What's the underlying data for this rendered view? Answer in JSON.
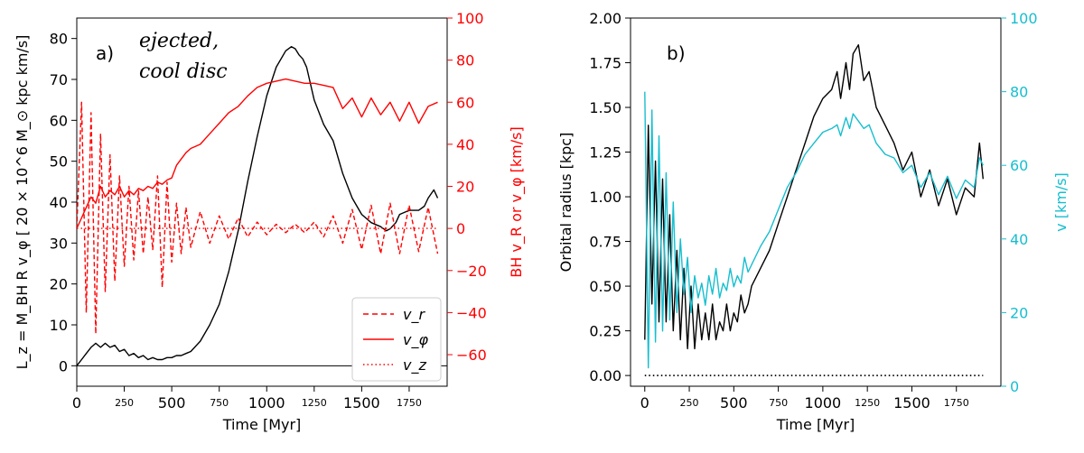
{
  "chart_data": [
    {
      "type": "line",
      "panel_label": "a)",
      "annotation": [
        "ejected,",
        "cool disc"
      ],
      "xlabel": "Time [Myr]",
      "ylabel_left": "L_z = M_BH R v_φ [ 20 × 10^6 M_⊙ kpc km/s]",
      "ylabel_right": "BH v_R or v_φ [km/s]",
      "xlim": [
        0,
        1950
      ],
      "ylim_left": [
        -5,
        85
      ],
      "ylim_right": [
        -75,
        100
      ],
      "x_ticks_large": [
        "0",
        "500",
        "1000",
        "1500"
      ],
      "x_ticks_small": [
        "250",
        "750",
        "1250",
        "1750"
      ],
      "y_ticks_left": [
        "0",
        "10",
        "20",
        "30",
        "40",
        "50",
        "60",
        "70",
        "80"
      ],
      "y_ticks_right": [
        "−60",
        "−40",
        "−20",
        "0",
        "20",
        "40",
        "60",
        "80",
        "100"
      ],
      "colors": {
        "lz": "#000000",
        "velocity": "#ff0000"
      },
      "legend": {
        "placement": "bottom-right",
        "entries": [
          "v_r",
          "v_φ",
          "v_z"
        ]
      },
      "series": [
        {
          "name": "L_z",
          "axis": "left",
          "x": [
            0,
            25,
            50,
            75,
            100,
            125,
            150,
            175,
            200,
            225,
            250,
            275,
            300,
            325,
            350,
            375,
            400,
            425,
            450,
            475,
            500,
            525,
            550,
            575,
            600,
            650,
            700,
            750,
            800,
            850,
            900,
            950,
            1000,
            1050,
            1100,
            1130,
            1150,
            1170,
            1190,
            1210,
            1250,
            1300,
            1350,
            1400,
            1450,
            1500,
            1550,
            1600,
            1630,
            1650,
            1680,
            1700,
            1750,
            1800,
            1830,
            1850,
            1880,
            1900
          ],
          "y": [
            0,
            1.5,
            3,
            4.5,
            5.5,
            4.5,
            5.5,
            4.5,
            5,
            3.5,
            4,
            2.5,
            3,
            2,
            2.5,
            1.5,
            2,
            1.5,
            1.5,
            2,
            2,
            2.5,
            2.5,
            3,
            3.5,
            6,
            10,
            15,
            23,
            33,
            45,
            56,
            66,
            73,
            77,
            78,
            77.5,
            76,
            75,
            73,
            65,
            59,
            55,
            47,
            41,
            37,
            35,
            34,
            33,
            33.5,
            35,
            37,
            38,
            38,
            39,
            41,
            43,
            41
          ]
        },
        {
          "name": "v_phi",
          "axis": "right",
          "x": [
            0,
            25,
            50,
            75,
            100,
            125,
            150,
            175,
            200,
            225,
            250,
            275,
            300,
            325,
            350,
            375,
            400,
            425,
            450,
            475,
            500,
            525,
            550,
            575,
            600,
            650,
            700,
            750,
            800,
            850,
            900,
            950,
            1000,
            1050,
            1100,
            1150,
            1200,
            1250,
            1300,
            1350,
            1400,
            1450,
            1500,
            1550,
            1600,
            1650,
            1700,
            1750,
            1800,
            1850,
            1900
          ],
          "y": [
            0,
            5,
            10,
            15,
            12,
            20,
            15,
            18,
            16,
            20,
            15,
            18,
            16,
            19,
            18,
            20,
            19,
            22,
            21,
            23,
            24,
            30,
            33,
            36,
            38,
            40,
            45,
            50,
            55,
            58,
            63,
            67,
            69,
            70,
            71,
            70,
            69,
            69,
            68,
            67,
            57,
            62,
            53,
            62,
            54,
            60,
            51,
            60,
            50,
            58,
            60
          ]
        },
        {
          "name": "v_r",
          "axis": "right",
          "x": [
            0,
            25,
            50,
            75,
            100,
            125,
            150,
            175,
            200,
            225,
            250,
            275,
            300,
            325,
            350,
            375,
            400,
            425,
            450,
            475,
            500,
            525,
            550,
            575,
            600,
            650,
            700,
            750,
            800,
            850,
            900,
            950,
            1000,
            1050,
            1100,
            1150,
            1200,
            1250,
            1300,
            1350,
            1400,
            1450,
            1500,
            1550,
            1600,
            1650,
            1700,
            1750,
            1800,
            1850,
            1900
          ],
          "y": [
            0,
            60,
            -40,
            55,
            -50,
            45,
            -30,
            35,
            -25,
            25,
            -18,
            20,
            -15,
            18,
            -12,
            15,
            -10,
            25,
            -28,
            22,
            -16,
            12,
            -12,
            10,
            -9,
            8,
            -7,
            6,
            -5,
            5,
            -4,
            3,
            -3,
            2,
            -2,
            2,
            -2,
            3,
            -4,
            6,
            -7,
            9,
            -10,
            11,
            -12,
            12,
            -12,
            11,
            -11,
            10,
            -12
          ]
        },
        {
          "name": "v_z",
          "axis": "right",
          "x": [
            0,
            500,
            1000,
            1500,
            1900
          ],
          "y": [
            0,
            0,
            0,
            0,
            0
          ]
        }
      ]
    },
    {
      "type": "line",
      "panel_label": "b)",
      "xlabel": "Time [Myr]",
      "ylabel_left": "Orbital radius [kpc]",
      "ylabel_right": "v [km/s]",
      "xlim": [
        -80,
        2000
      ],
      "ylim_left": [
        -0.06,
        2.0
      ],
      "ylim_right": [
        0,
        100
      ],
      "x_ticks_large": [
        "0",
        "500",
        "1000",
        "1500"
      ],
      "x_ticks_small": [
        "250",
        "750",
        "1250",
        "1750"
      ],
      "y_ticks_left": [
        "0.00",
        "0.25",
        "0.50",
        "0.75",
        "1.00",
        "1.25",
        "1.50",
        "1.75",
        "2.00"
      ],
      "y_ticks_right": [
        "0",
        "20",
        "40",
        "60",
        "80",
        "100"
      ],
      "colors": {
        "radius": "#000000",
        "velocity": "#17becf"
      },
      "series": [
        {
          "name": "orbital_radius",
          "axis": "left",
          "x": [
            0,
            20,
            40,
            60,
            80,
            100,
            120,
            140,
            160,
            180,
            200,
            220,
            240,
            260,
            280,
            300,
            320,
            340,
            360,
            380,
            400,
            420,
            440,
            460,
            480,
            500,
            520,
            540,
            560,
            580,
            600,
            650,
            700,
            750,
            800,
            850,
            900,
            950,
            1000,
            1050,
            1080,
            1100,
            1130,
            1150,
            1170,
            1200,
            1230,
            1260,
            1300,
            1350,
            1400,
            1450,
            1500,
            1550,
            1600,
            1650,
            1700,
            1750,
            1800,
            1850,
            1880,
            1900
          ],
          "y": [
            0.2,
            1.4,
            0.4,
            1.2,
            0.3,
            1.1,
            0.3,
            0.9,
            0.25,
            0.7,
            0.2,
            0.6,
            0.15,
            0.5,
            0.15,
            0.4,
            0.2,
            0.35,
            0.2,
            0.4,
            0.2,
            0.3,
            0.25,
            0.4,
            0.25,
            0.35,
            0.3,
            0.45,
            0.35,
            0.4,
            0.5,
            0.6,
            0.7,
            0.85,
            1.0,
            1.15,
            1.3,
            1.45,
            1.55,
            1.6,
            1.7,
            1.55,
            1.75,
            1.6,
            1.8,
            1.85,
            1.65,
            1.7,
            1.5,
            1.4,
            1.3,
            1.15,
            1.25,
            1.0,
            1.15,
            0.95,
            1.1,
            0.9,
            1.05,
            1.0,
            1.3,
            1.1
          ]
        },
        {
          "name": "v",
          "axis": "right",
          "x": [
            0,
            20,
            40,
            60,
            80,
            100,
            120,
            140,
            160,
            180,
            200,
            220,
            240,
            260,
            280,
            300,
            320,
            340,
            360,
            380,
            400,
            420,
            440,
            460,
            480,
            500,
            520,
            540,
            560,
            580,
            600,
            650,
            700,
            750,
            800,
            850,
            900,
            950,
            1000,
            1050,
            1080,
            1100,
            1130,
            1150,
            1170,
            1200,
            1230,
            1260,
            1300,
            1350,
            1400,
            1450,
            1500,
            1550,
            1600,
            1650,
            1700,
            1750,
            1800,
            1850,
            1880,
            1900
          ],
          "y": [
            80,
            5,
            75,
            12,
            68,
            15,
            58,
            18,
            50,
            20,
            40,
            25,
            35,
            20,
            30,
            24,
            28,
            22,
            30,
            25,
            32,
            24,
            28,
            26,
            32,
            27,
            30,
            28,
            35,
            31,
            33,
            38,
            42,
            48,
            54,
            58,
            63,
            66,
            69,
            70,
            71,
            68,
            73,
            70,
            74,
            72,
            70,
            71,
            66,
            63,
            62,
            58,
            60,
            54,
            58,
            52,
            57,
            51,
            56,
            54,
            62,
            60
          ]
        },
        {
          "name": "z",
          "axis": "left",
          "x": [
            0,
            250,
            500,
            750,
            1000,
            1250,
            1500,
            1750,
            1900
          ],
          "y": [
            0,
            0,
            0,
            0,
            0,
            0,
            0,
            0,
            0
          ]
        }
      ]
    }
  ]
}
